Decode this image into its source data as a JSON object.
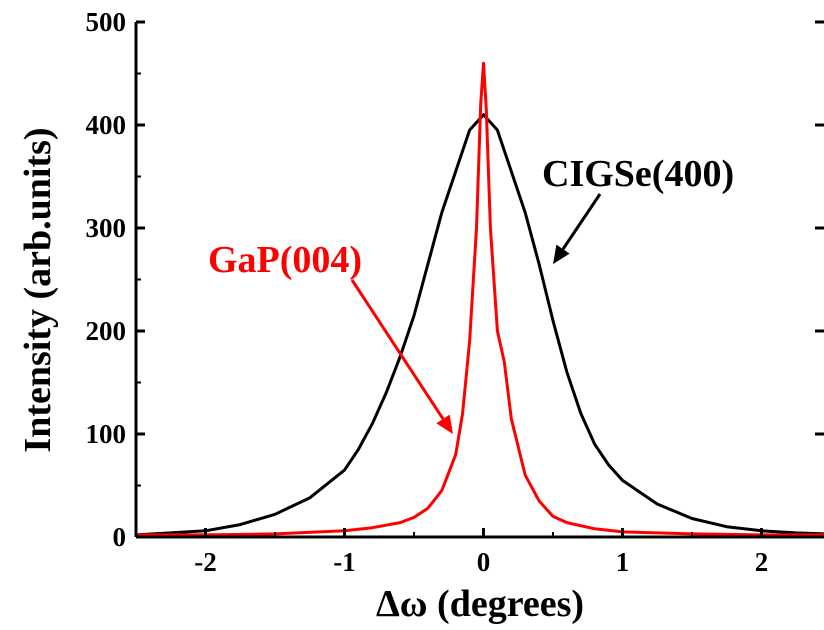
{
  "chart_data": {
    "type": "line",
    "xlabel": "Δω (degrees)",
    "ylabel": "Intensity (arb.units)",
    "xlim": [
      -2.5,
      2.45
    ],
    "ylim": [
      0,
      500
    ],
    "xticks": [
      -2,
      -1,
      0,
      1,
      2
    ],
    "yticks": [
      0,
      100,
      200,
      300,
      400,
      500
    ],
    "xtick_labels": [
      "-2",
      "-1",
      "0",
      "1",
      "2"
    ],
    "ytick_labels": [
      "0",
      "100",
      "200",
      "300",
      "400",
      "500"
    ],
    "grid": false,
    "legend": "none",
    "series": [
      {
        "color": "#000000",
        "x": [
          -2.5,
          -2.25,
          -2.0,
          -1.75,
          -1.5,
          -1.25,
          -1.0,
          -0.9,
          -0.8,
          -0.7,
          -0.6,
          -0.5,
          -0.4,
          -0.3,
          -0.2,
          -0.1,
          0.0,
          0.1,
          0.2,
          0.3,
          0.4,
          0.5,
          0.6,
          0.7,
          0.8,
          0.9,
          1.0,
          1.25,
          1.5,
          1.75,
          2.0,
          2.25,
          2.45
        ],
        "y": [
          2,
          4,
          6,
          12,
          22,
          38,
          65,
          85,
          110,
          140,
          175,
          215,
          265,
          315,
          355,
          395,
          410,
          395,
          355,
          315,
          265,
          210,
          160,
          120,
          90,
          70,
          55,
          32,
          18,
          10,
          6,
          4,
          3
        ]
      },
      {
        "color": "#ff0000",
        "x": [
          -2.5,
          -2.0,
          -1.5,
          -1.0,
          -0.8,
          -0.6,
          -0.5,
          -0.4,
          -0.3,
          -0.2,
          -0.15,
          -0.1,
          -0.05,
          -0.02,
          0.0,
          0.02,
          0.05,
          0.1,
          0.15,
          0.2,
          0.3,
          0.4,
          0.5,
          0.6,
          0.8,
          1.0,
          1.5,
          2.0,
          2.45
        ],
        "y": [
          2,
          2,
          3,
          6,
          9,
          14,
          19,
          28,
          45,
          80,
          120,
          190,
          300,
          420,
          460,
          415,
          300,
          200,
          170,
          115,
          60,
          35,
          20,
          14,
          8,
          5,
          3,
          2,
          2
        ]
      }
    ],
    "annotations": [
      {
        "text": "CIGSe(400)",
        "color": "#000000",
        "arrow_to": [
          0.5,
          265
        ]
      },
      {
        "text": "GaP(004)",
        "color": "#ff0000",
        "arrow_to": [
          -0.22,
          100
        ]
      }
    ]
  }
}
